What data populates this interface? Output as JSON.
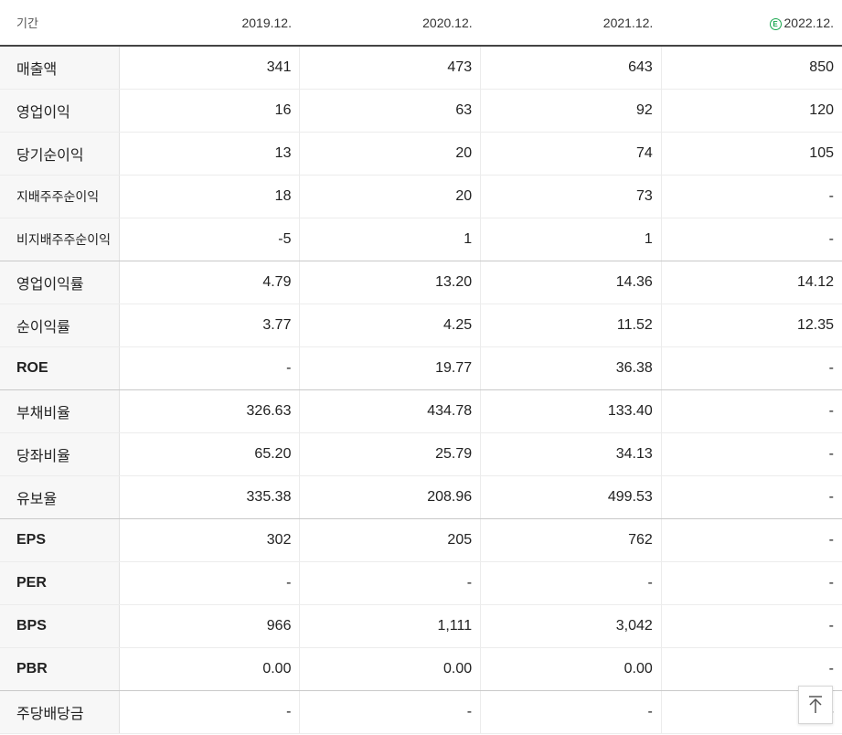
{
  "header": {
    "period_label": "기간",
    "periods": [
      "2019.12.",
      "2020.12.",
      "2021.12.",
      "2022.12."
    ],
    "estimate_badge": "E"
  },
  "rows": [
    {
      "label": "매출액",
      "values": [
        "341",
        "473",
        "643",
        "850"
      ]
    },
    {
      "label": "영업이익",
      "values": [
        "16",
        "63",
        "92",
        "120"
      ]
    },
    {
      "label": "당기순이익",
      "values": [
        "13",
        "20",
        "74",
        "105"
      ]
    },
    {
      "label": "지배주주순이익",
      "values": [
        "18",
        "20",
        "73",
        "-"
      ]
    },
    {
      "label": "비지배주주순이익",
      "values": [
        "-5",
        "1",
        "1",
        "-"
      ]
    },
    {
      "label": "영업이익률",
      "values": [
        "4.79",
        "13.20",
        "14.36",
        "14.12"
      ]
    },
    {
      "label": "순이익률",
      "values": [
        "3.77",
        "4.25",
        "11.52",
        "12.35"
      ]
    },
    {
      "label": "ROE",
      "values": [
        "-",
        "19.77",
        "36.38",
        "-"
      ]
    },
    {
      "label": "부채비율",
      "values": [
        "326.63",
        "434.78",
        "133.40",
        "-"
      ]
    },
    {
      "label": "당좌비율",
      "values": [
        "65.20",
        "25.79",
        "34.13",
        "-"
      ]
    },
    {
      "label": "유보율",
      "values": [
        "335.38",
        "208.96",
        "499.53",
        "-"
      ]
    },
    {
      "label": "EPS",
      "values": [
        "302",
        "205",
        "762",
        "-"
      ]
    },
    {
      "label": "PER",
      "values": [
        "-",
        "-",
        "-",
        "-"
      ]
    },
    {
      "label": "BPS",
      "values": [
        "966",
        "1,111",
        "3,042",
        "-"
      ]
    },
    {
      "label": "PBR",
      "values": [
        "0.00",
        "0.00",
        "0.00",
        "-"
      ]
    },
    {
      "label": "주당배당금",
      "values": [
        "-",
        "-",
        "-",
        "-"
      ]
    }
  ],
  "colors": {
    "negative": "#2f7fd6",
    "estimate_badge": "#1aa84f"
  },
  "top_button": {
    "icon": "arrow-up-to-top-icon"
  }
}
